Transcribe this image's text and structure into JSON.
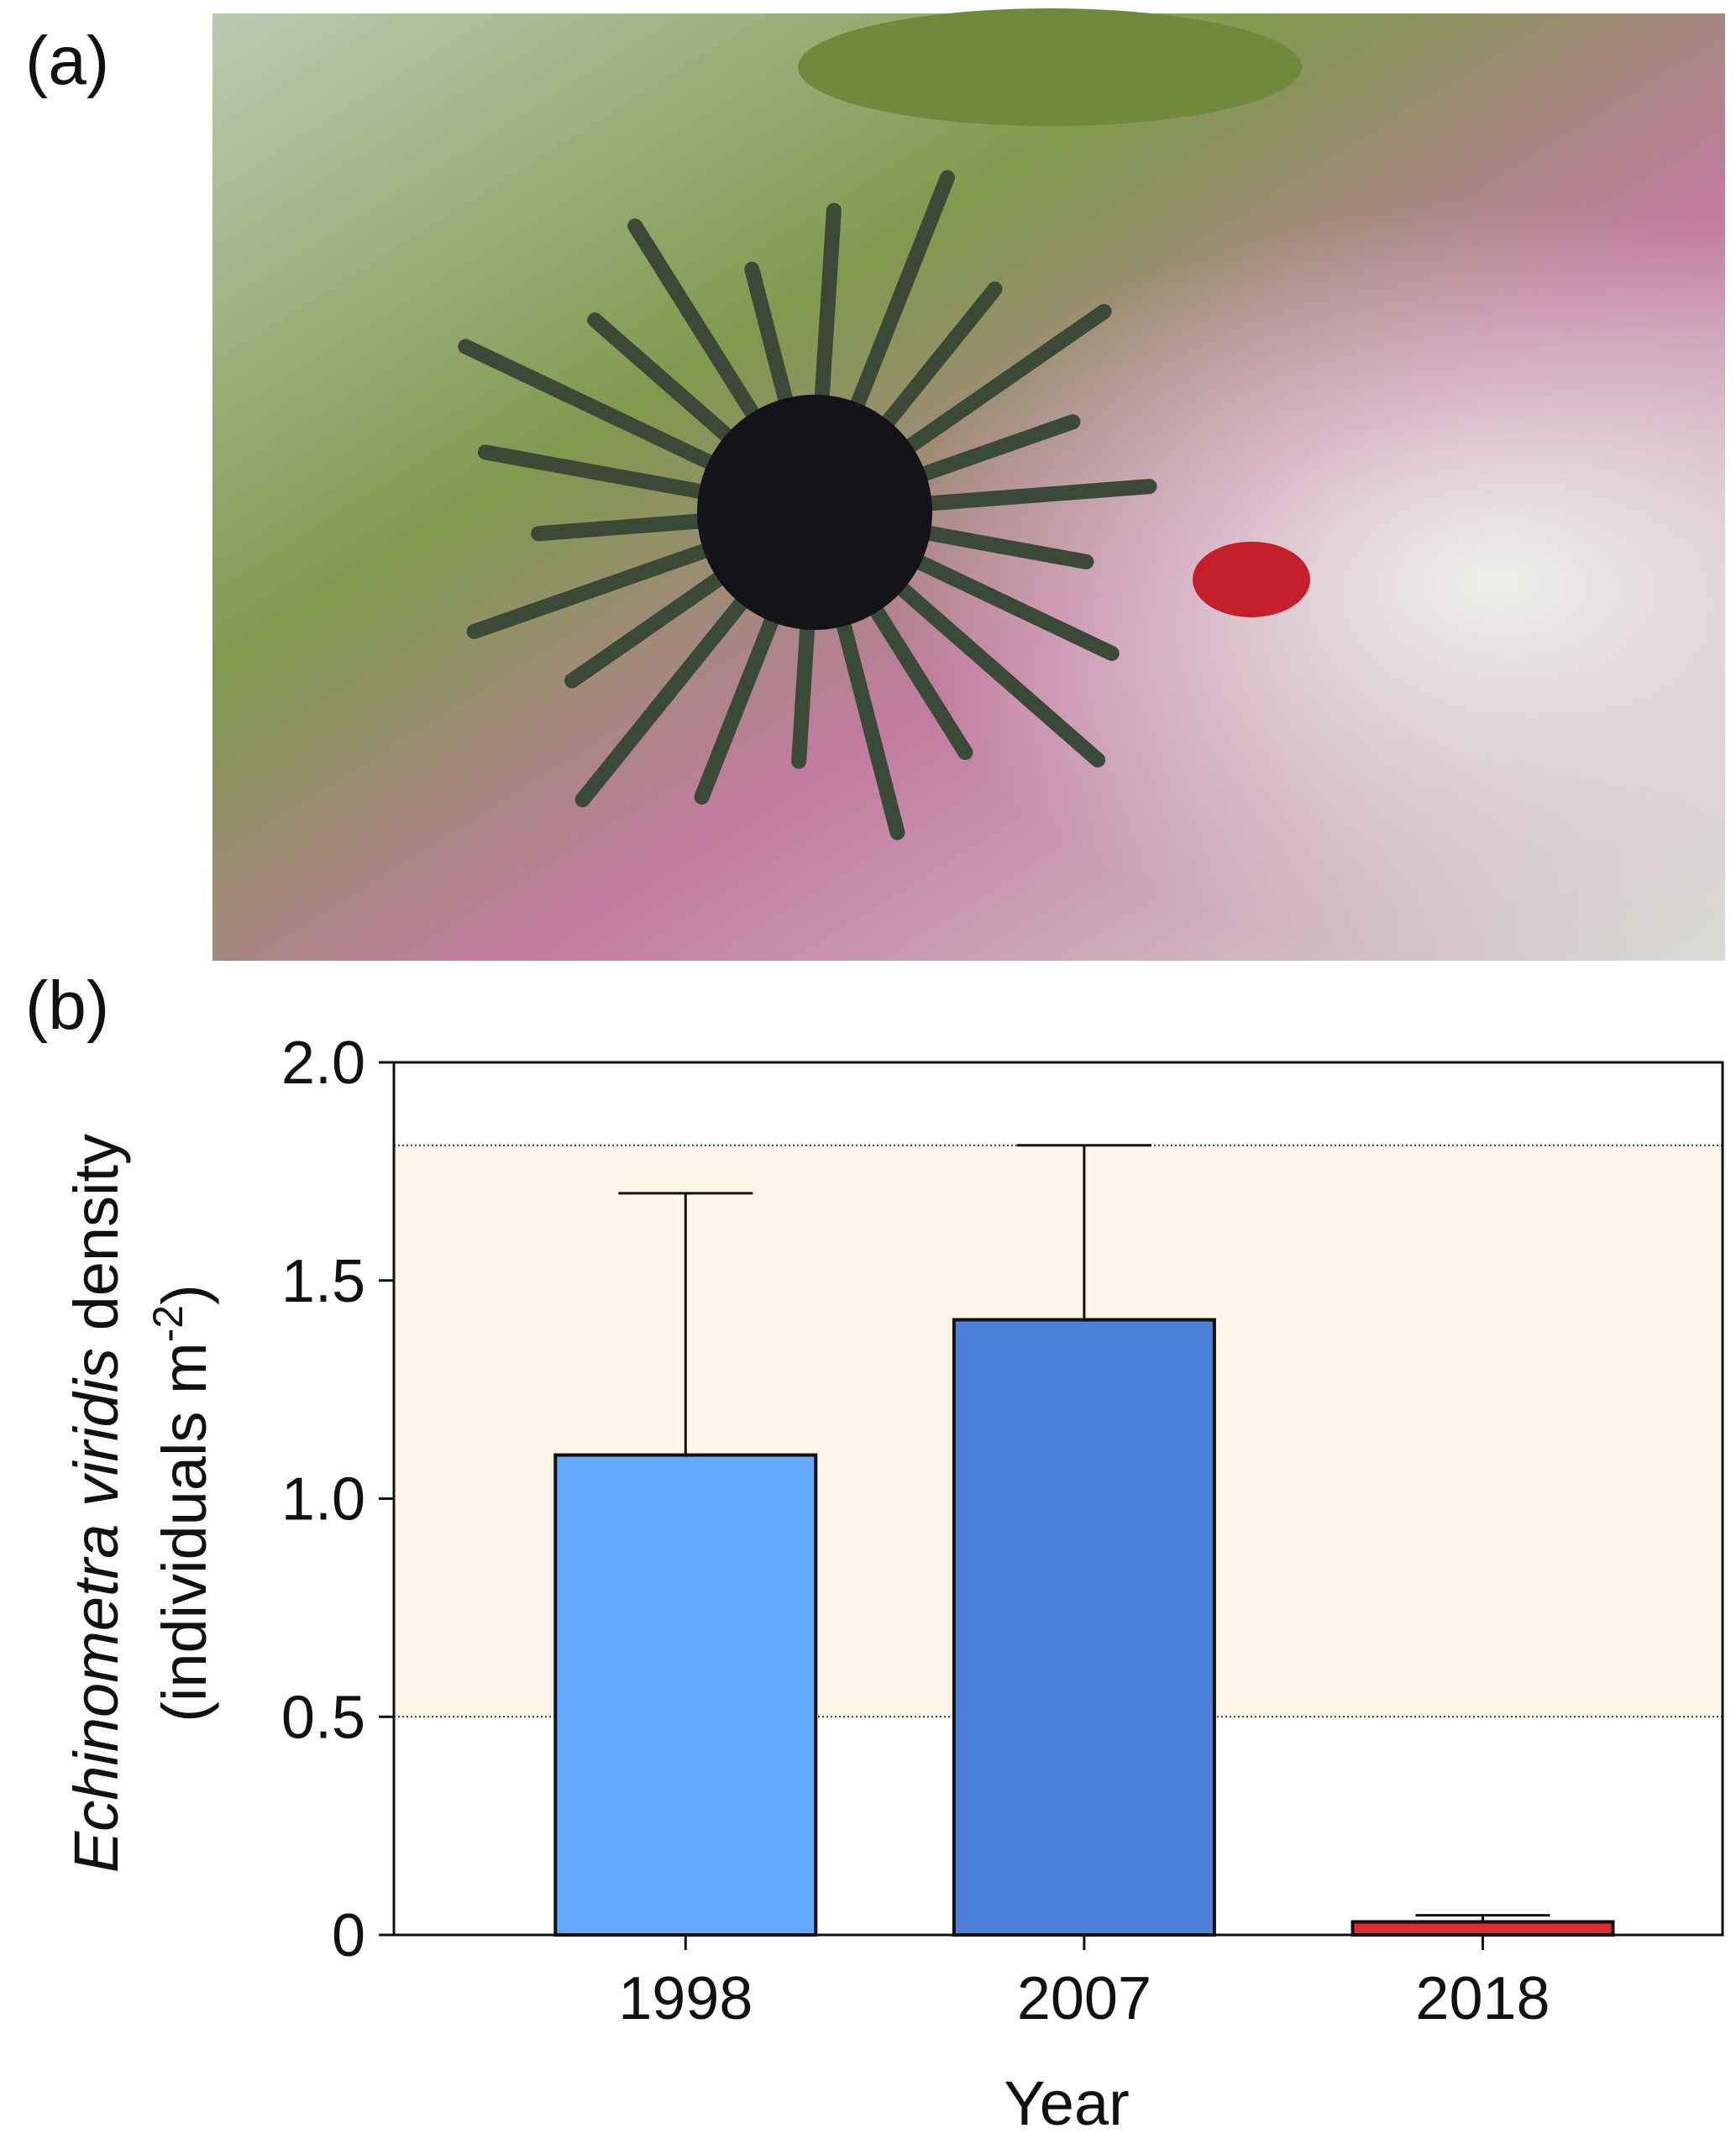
{
  "panel_labels": [
    "(a)",
    "(b)"
  ],
  "chart_data": {
    "type": "bar",
    "categories": [
      "1998",
      "2007",
      "2018"
    ],
    "values": [
      1.1,
      1.41,
      0.03
    ],
    "errors": [
      0.6,
      0.4,
      0.015
    ],
    "colors": [
      "#64a8fe",
      "#4d80d8",
      "#e02a36"
    ],
    "x_label": "Year",
    "y_label": {
      "italic": "Echinometra viridis",
      "rest": "density",
      "unit_open": "(individuals m",
      "unit_sup": "-2",
      "unit_close": ")"
    },
    "ylim": [
      0,
      2
    ],
    "yticks": [
      0,
      0.5,
      {
        "value": 1,
        "label": "1.0"
      },
      1.5,
      {
        "value": 2,
        "label": "2.0"
      }
    ],
    "shaded_range": {
      "from": 0.5,
      "to": 1.81,
      "color": "#fdf6e6"
    }
  }
}
